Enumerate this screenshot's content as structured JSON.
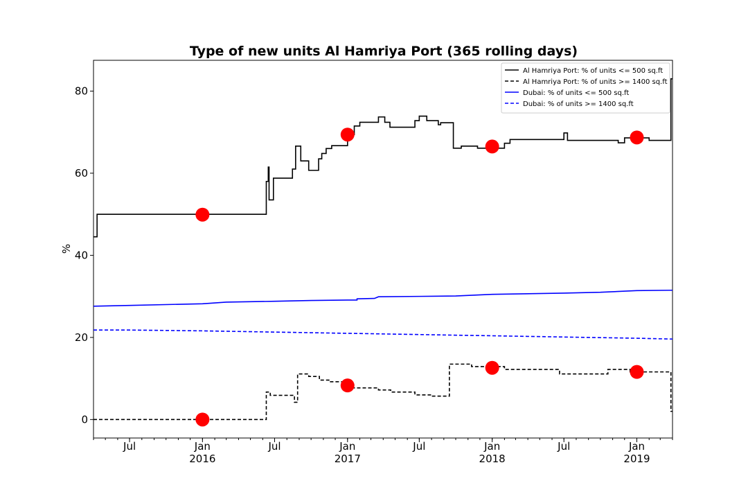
{
  "chart_data": {
    "type": "line",
    "title": "Type of new units Al Hamriya Port (365 rolling days)",
    "xlabel": "",
    "ylabel": "%",
    "x_start": "2015-04-01",
    "x_end": "2019-04-01",
    "ylim": [
      -4.5,
      87.5
    ],
    "y_ticks": [
      0,
      20,
      40,
      60,
      80
    ],
    "x_ticks": [
      {
        "date": "2015-07-01",
        "line1": "Jul",
        "line2": ""
      },
      {
        "date": "2016-01-01",
        "line1": "Jan",
        "line2": "2016"
      },
      {
        "date": "2016-07-01",
        "line1": "Jul",
        "line2": ""
      },
      {
        "date": "2017-01-01",
        "line1": "Jan",
        "line2": "2017"
      },
      {
        "date": "2017-07-01",
        "line1": "Jul",
        "line2": ""
      },
      {
        "date": "2018-01-01",
        "line1": "Jan",
        "line2": "2018"
      },
      {
        "date": "2018-07-01",
        "line1": "Jul",
        "line2": ""
      },
      {
        "date": "2019-01-01",
        "line1": "Jan",
        "line2": "2019"
      }
    ],
    "grid": false,
    "legend_position": "top-right",
    "series": [
      {
        "name": "Al Hamriya Port: % of units <= 500 sq.ft",
        "color": "#000000",
        "dash": "solid",
        "points": [
          [
            "2015-04-01",
            44.5
          ],
          [
            "2015-04-10",
            44.5
          ],
          [
            "2015-04-10",
            50
          ],
          [
            "2016-06-10",
            50
          ],
          [
            "2016-06-10",
            58
          ],
          [
            "2016-06-15",
            58
          ],
          [
            "2016-06-15",
            61.5
          ],
          [
            "2016-06-17",
            61.5
          ],
          [
            "2016-06-17",
            53.5
          ],
          [
            "2016-06-28",
            53.5
          ],
          [
            "2016-06-28",
            58.8
          ],
          [
            "2016-08-15",
            58.8
          ],
          [
            "2016-08-15",
            61
          ],
          [
            "2016-08-23",
            61
          ],
          [
            "2016-08-23",
            66.6
          ],
          [
            "2016-09-05",
            66.6
          ],
          [
            "2016-09-05",
            63
          ],
          [
            "2016-09-25",
            63
          ],
          [
            "2016-09-25",
            60.7
          ],
          [
            "2016-10-20",
            60.7
          ],
          [
            "2016-10-20",
            63.5
          ],
          [
            "2016-10-28",
            63.5
          ],
          [
            "2016-10-28",
            64.8
          ],
          [
            "2016-11-08",
            64.8
          ],
          [
            "2016-11-08",
            66
          ],
          [
            "2016-11-22",
            66
          ],
          [
            "2016-11-22",
            66.7
          ],
          [
            "2017-01-01",
            66.7
          ],
          [
            "2017-01-01",
            69.4
          ],
          [
            "2017-01-18",
            69.4
          ],
          [
            "2017-01-18",
            71.5
          ],
          [
            "2017-02-01",
            71.5
          ],
          [
            "2017-02-01",
            72.4
          ],
          [
            "2017-03-20",
            72.4
          ],
          [
            "2017-03-20",
            73.7
          ],
          [
            "2017-04-05",
            73.7
          ],
          [
            "2017-04-05",
            72.4
          ],
          [
            "2017-04-18",
            72.4
          ],
          [
            "2017-04-18",
            71.2
          ],
          [
            "2017-06-20",
            71.2
          ],
          [
            "2017-06-20",
            72.8
          ],
          [
            "2017-07-01",
            72.8
          ],
          [
            "2017-07-01",
            73.9
          ],
          [
            "2017-07-20",
            73.9
          ],
          [
            "2017-07-20",
            72.8
          ],
          [
            "2017-08-18",
            72.8
          ],
          [
            "2017-08-18",
            71.8
          ],
          [
            "2017-08-24",
            71.8
          ],
          [
            "2017-08-24",
            72.3
          ],
          [
            "2017-09-25",
            72.3
          ],
          [
            "2017-09-25",
            66.1
          ],
          [
            "2017-10-15",
            66.1
          ],
          [
            "2017-10-15",
            66.6
          ],
          [
            "2017-11-25",
            66.6
          ],
          [
            "2017-11-25",
            66.1
          ],
          [
            "2018-02-01",
            66.1
          ],
          [
            "2018-02-01",
            67.3
          ],
          [
            "2018-02-15",
            67.3
          ],
          [
            "2018-02-15",
            68.2
          ],
          [
            "2018-07-01",
            68.2
          ],
          [
            "2018-07-01",
            69.8
          ],
          [
            "2018-07-10",
            69.8
          ],
          [
            "2018-07-10",
            68
          ],
          [
            "2018-11-15",
            68
          ],
          [
            "2018-11-15",
            67.4
          ],
          [
            "2018-12-01",
            67.4
          ],
          [
            "2018-12-01",
            68.6
          ],
          [
            "2019-02-01",
            68.6
          ],
          [
            "2019-02-01",
            68
          ],
          [
            "2019-03-28",
            68
          ],
          [
            "2019-03-28",
            83
          ],
          [
            "2019-04-01",
            83
          ]
        ]
      },
      {
        "name": "Al Hamriya Port: % of units >= 1400 sq.ft",
        "color": "#000000",
        "dash": "dashed",
        "points": [
          [
            "2015-04-01",
            0
          ],
          [
            "2016-06-10",
            0
          ],
          [
            "2016-06-10",
            6.7
          ],
          [
            "2016-06-20",
            6.7
          ],
          [
            "2016-06-20",
            5.9
          ],
          [
            "2016-08-20",
            5.9
          ],
          [
            "2016-08-20",
            4.2
          ],
          [
            "2016-08-28",
            4.2
          ],
          [
            "2016-08-28",
            11.1
          ],
          [
            "2016-09-25",
            11.1
          ],
          [
            "2016-09-25",
            10.5
          ],
          [
            "2016-10-22",
            10.5
          ],
          [
            "2016-10-22",
            9.6
          ],
          [
            "2016-11-15",
            9.6
          ],
          [
            "2016-11-15",
            9.2
          ],
          [
            "2017-01-10",
            9.2
          ],
          [
            "2017-01-10",
            7.7
          ],
          [
            "2017-03-20",
            7.7
          ],
          [
            "2017-03-20",
            7.2
          ],
          [
            "2017-04-20",
            7.2
          ],
          [
            "2017-04-20",
            6.7
          ],
          [
            "2017-06-20",
            6.7
          ],
          [
            "2017-06-20",
            6
          ],
          [
            "2017-08-01",
            6
          ],
          [
            "2017-08-01",
            5.7
          ],
          [
            "2017-09-15",
            5.7
          ],
          [
            "2017-09-15",
            13.5
          ],
          [
            "2017-11-10",
            13.5
          ],
          [
            "2017-11-10",
            12.9
          ],
          [
            "2018-02-01",
            12.9
          ],
          [
            "2018-02-01",
            12.2
          ],
          [
            "2018-06-20",
            12.2
          ],
          [
            "2018-06-20",
            11.1
          ],
          [
            "2018-10-20",
            11.1
          ],
          [
            "2018-10-20",
            12.2
          ],
          [
            "2018-12-15",
            12.2
          ],
          [
            "2018-12-15",
            11.6
          ],
          [
            "2019-03-28",
            11.6
          ],
          [
            "2019-03-28",
            2
          ],
          [
            "2019-04-01",
            2
          ]
        ]
      },
      {
        "name": "Dubai: % of units <= 500 sq.ft",
        "color": "#0000ff",
        "dash": "solid",
        "points": [
          [
            "2015-04-01",
            27.6
          ],
          [
            "2015-07-01",
            27.8
          ],
          [
            "2016-01-01",
            28.2
          ],
          [
            "2016-03-01",
            28.6
          ],
          [
            "2016-07-01",
            28.8
          ],
          [
            "2016-10-01",
            29
          ],
          [
            "2017-01-01",
            29.1
          ],
          [
            "2017-01-25",
            29.1
          ],
          [
            "2017-01-25",
            29.4
          ],
          [
            "2017-03-10",
            29.5
          ],
          [
            "2017-03-20",
            29.9
          ],
          [
            "2017-07-01",
            30
          ],
          [
            "2017-10-01",
            30.1
          ],
          [
            "2018-01-01",
            30.5
          ],
          [
            "2018-07-01",
            30.8
          ],
          [
            "2018-10-01",
            31
          ],
          [
            "2019-01-01",
            31.4
          ],
          [
            "2019-04-01",
            31.5
          ]
        ]
      },
      {
        "name": "Dubai: % of units >= 1400 sq.ft",
        "color": "#0000ff",
        "dash": "dashed",
        "points": [
          [
            "2015-04-01",
            21.8
          ],
          [
            "2015-07-01",
            21.8
          ],
          [
            "2016-01-01",
            21.6
          ],
          [
            "2016-07-01",
            21.3
          ],
          [
            "2017-01-01",
            21
          ],
          [
            "2017-07-01",
            20.7
          ],
          [
            "2018-01-01",
            20.4
          ],
          [
            "2018-07-01",
            20.1
          ],
          [
            "2019-01-01",
            19.8
          ],
          [
            "2019-04-01",
            19.6
          ]
        ]
      }
    ],
    "markers": {
      "color": "#ff0000",
      "points": [
        [
          "2016-01-01",
          49.9
        ],
        [
          "2017-01-01",
          69.4
        ],
        [
          "2018-01-01",
          66.5
        ],
        [
          "2019-01-01",
          68.7
        ],
        [
          "2016-01-01",
          0
        ],
        [
          "2017-01-01",
          8.3
        ],
        [
          "2018-01-01",
          12.6
        ],
        [
          "2019-01-01",
          11.6
        ]
      ]
    }
  }
}
